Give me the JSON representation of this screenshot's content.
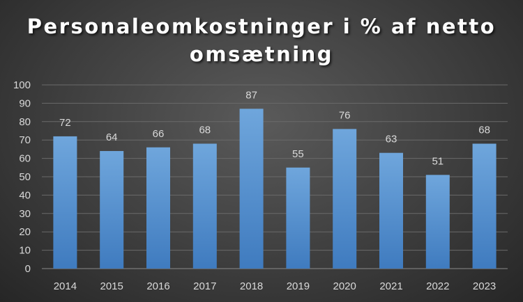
{
  "colors": {
    "bar_top": "#6fa6dc",
    "bar_bottom": "#3f7bbf",
    "gridline": "#6a6a6a",
    "axis": "#8a8a8a",
    "text": "#d9d9d9",
    "title": "#ffffff"
  },
  "chart_data": {
    "type": "bar",
    "title": "Personaleomkostninger i % af netto omsætning",
    "title_lines": [
      "Personaleomkostninger i % af netto",
      "omsætning"
    ],
    "xlabel": "",
    "ylabel": "",
    "categories": [
      "2014",
      "2015",
      "2016",
      "2017",
      "2018",
      "2019",
      "2020",
      "2021",
      "2022",
      "2023"
    ],
    "values": [
      72,
      64,
      66,
      68,
      87,
      55,
      76,
      63,
      51,
      68
    ],
    "data_labels": [
      "72",
      "64",
      "66",
      "68",
      "87",
      "55",
      "76",
      "63",
      "51",
      "68"
    ],
    "ylim": [
      0,
      100
    ],
    "yticks": [
      "0",
      "10",
      "20",
      "30",
      "40",
      "50",
      "60",
      "70",
      "80",
      "90",
      "100"
    ],
    "grid": true,
    "legend": "none"
  }
}
